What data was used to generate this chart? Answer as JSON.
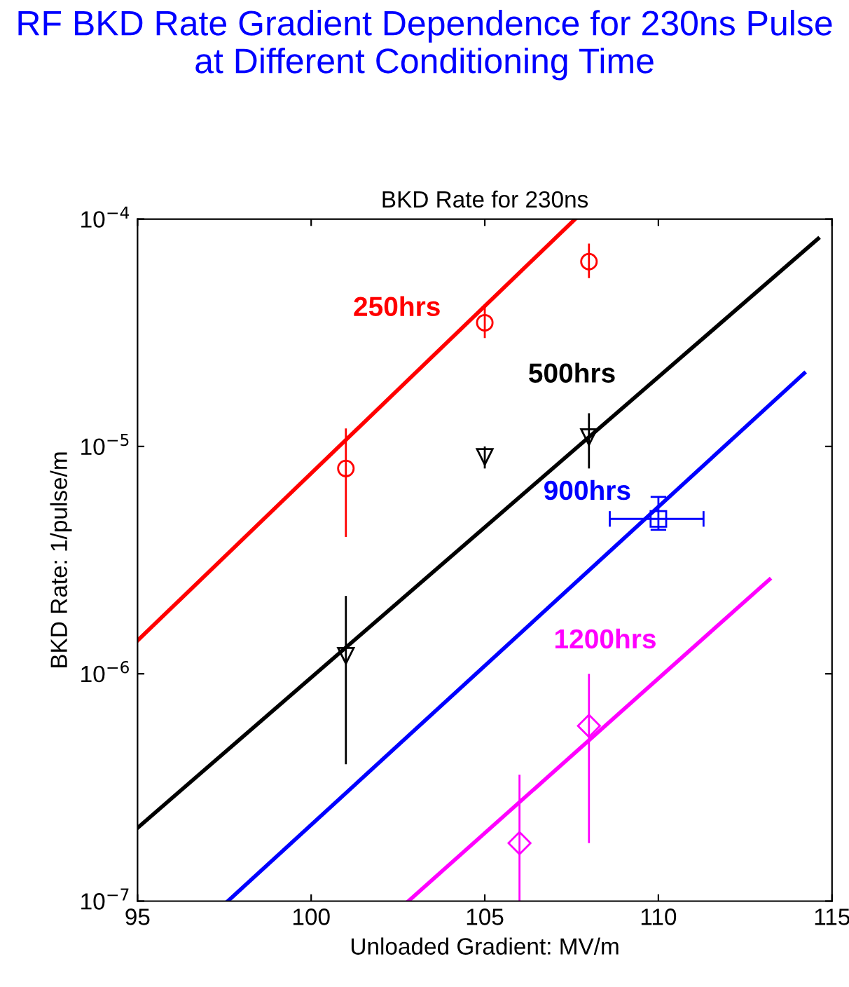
{
  "chart_data": {
    "type": "scatter",
    "title": "RF BKD Rate Gradient Dependence for 230ns Pulse at Different Conditioning Time",
    "subtitle": "BKD Rate for 230ns",
    "xlabel": "Unloaded Gradient: MV/m",
    "ylabel": "BKD Rate: 1/pulse/m",
    "log": "y",
    "xlim": [
      95,
      115
    ],
    "ylim": [
      1e-07,
      0.0001
    ],
    "xticks": [
      95,
      100,
      105,
      110,
      115
    ],
    "yticks": [
      {
        "value": 1e-07,
        "label": "10$^{−7}$"
      },
      {
        "value": 1e-06,
        "label": "10$^{−6}$"
      },
      {
        "value": 1e-05,
        "label": "10$^{−5}$"
      },
      {
        "value": 0.0001,
        "label": "10$^{−4}$"
      }
    ],
    "grid": false,
    "legend": false,
    "series": [
      {
        "type": "line",
        "name": "250hrs",
        "color": "#ff0000",
        "x": [
          95,
          107.6
        ],
        "values": [
          1.4e-06,
          0.0001
        ]
      },
      {
        "type": "line",
        "name": "500hrs",
        "color": "#000000",
        "x": [
          95,
          114.6
        ],
        "values": [
          2.1e-07,
          8.2e-05
        ]
      },
      {
        "type": "line",
        "name": "900hrs",
        "color": "#0000ff",
        "x": [
          97.6,
          114.2
        ],
        "values": [
          1e-07,
          2.1e-05
        ]
      },
      {
        "type": "line",
        "name": "1200hrs",
        "color": "#ff00ff",
        "x": [
          102.8,
          113.2
        ],
        "values": [
          1e-07,
          2.6e-06
        ]
      },
      {
        "marker": "circle",
        "color": "#ff0000",
        "x": [
          101,
          105,
          108
        ],
        "values": [
          8e-06,
          3.5e-05,
          6.5e-05
        ],
        "errors": [
          [
            4e-06,
            1.2e-05
          ],
          [
            3e-05,
            4.2e-05
          ],
          [
            5.5e-05,
            7.8e-05
          ]
        ]
      },
      {
        "marker": "triangle",
        "color": "#000000",
        "x": [
          101,
          105,
          108
        ],
        "values": [
          1.2e-06,
          9e-06,
          1.1e-05
        ],
        "errors": [
          [
            4e-07,
            2.2e-06
          ],
          [
            8e-06,
            1e-05
          ],
          [
            8e-06,
            1.4e-05
          ]
        ]
      },
      {
        "marker": "square",
        "color": "#0000ff",
        "x": [
          110
        ],
        "values": [
          4.8e-06
        ],
        "errors": [
          [
            4.3e-06,
            6e-06
          ]
        ],
        "xerrors": [
          [
            108.6,
            111.3
          ]
        ]
      },
      {
        "marker": "diamond",
        "color": "#ff00ff",
        "x": [
          106,
          108
        ],
        "values": [
          1.8e-07,
          5.9e-07
        ],
        "errors": [
          [
            1e-07,
            3.6e-07
          ],
          [
            1.8e-07,
            1e-06
          ]
        ]
      }
    ]
  }
}
